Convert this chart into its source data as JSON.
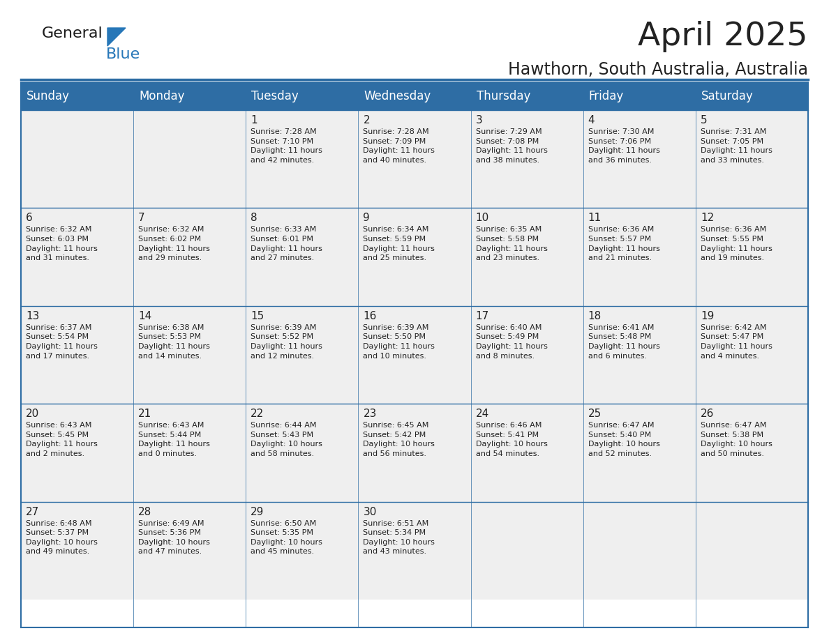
{
  "title": "April 2025",
  "subtitle": "Hawthorn, South Australia, Australia",
  "header_bg": "#2E6DA4",
  "header_text_color": "#FFFFFF",
  "cell_bg_light": "#EFEFEF",
  "text_color": "#222222",
  "border_color": "#2E6DA4",
  "day_headers": [
    "Sunday",
    "Monday",
    "Tuesday",
    "Wednesday",
    "Thursday",
    "Friday",
    "Saturday"
  ],
  "calendar_data": [
    [
      "",
      "",
      "1\nSunrise: 7:28 AM\nSunset: 7:10 PM\nDaylight: 11 hours\nand 42 minutes.",
      "2\nSunrise: 7:28 AM\nSunset: 7:09 PM\nDaylight: 11 hours\nand 40 minutes.",
      "3\nSunrise: 7:29 AM\nSunset: 7:08 PM\nDaylight: 11 hours\nand 38 minutes.",
      "4\nSunrise: 7:30 AM\nSunset: 7:06 PM\nDaylight: 11 hours\nand 36 minutes.",
      "5\nSunrise: 7:31 AM\nSunset: 7:05 PM\nDaylight: 11 hours\nand 33 minutes."
    ],
    [
      "6\nSunrise: 6:32 AM\nSunset: 6:03 PM\nDaylight: 11 hours\nand 31 minutes.",
      "7\nSunrise: 6:32 AM\nSunset: 6:02 PM\nDaylight: 11 hours\nand 29 minutes.",
      "8\nSunrise: 6:33 AM\nSunset: 6:01 PM\nDaylight: 11 hours\nand 27 minutes.",
      "9\nSunrise: 6:34 AM\nSunset: 5:59 PM\nDaylight: 11 hours\nand 25 minutes.",
      "10\nSunrise: 6:35 AM\nSunset: 5:58 PM\nDaylight: 11 hours\nand 23 minutes.",
      "11\nSunrise: 6:36 AM\nSunset: 5:57 PM\nDaylight: 11 hours\nand 21 minutes.",
      "12\nSunrise: 6:36 AM\nSunset: 5:55 PM\nDaylight: 11 hours\nand 19 minutes."
    ],
    [
      "13\nSunrise: 6:37 AM\nSunset: 5:54 PM\nDaylight: 11 hours\nand 17 minutes.",
      "14\nSunrise: 6:38 AM\nSunset: 5:53 PM\nDaylight: 11 hours\nand 14 minutes.",
      "15\nSunrise: 6:39 AM\nSunset: 5:52 PM\nDaylight: 11 hours\nand 12 minutes.",
      "16\nSunrise: 6:39 AM\nSunset: 5:50 PM\nDaylight: 11 hours\nand 10 minutes.",
      "17\nSunrise: 6:40 AM\nSunset: 5:49 PM\nDaylight: 11 hours\nand 8 minutes.",
      "18\nSunrise: 6:41 AM\nSunset: 5:48 PM\nDaylight: 11 hours\nand 6 minutes.",
      "19\nSunrise: 6:42 AM\nSunset: 5:47 PM\nDaylight: 11 hours\nand 4 minutes."
    ],
    [
      "20\nSunrise: 6:43 AM\nSunset: 5:45 PM\nDaylight: 11 hours\nand 2 minutes.",
      "21\nSunrise: 6:43 AM\nSunset: 5:44 PM\nDaylight: 11 hours\nand 0 minutes.",
      "22\nSunrise: 6:44 AM\nSunset: 5:43 PM\nDaylight: 10 hours\nand 58 minutes.",
      "23\nSunrise: 6:45 AM\nSunset: 5:42 PM\nDaylight: 10 hours\nand 56 minutes.",
      "24\nSunrise: 6:46 AM\nSunset: 5:41 PM\nDaylight: 10 hours\nand 54 minutes.",
      "25\nSunrise: 6:47 AM\nSunset: 5:40 PM\nDaylight: 10 hours\nand 52 minutes.",
      "26\nSunrise: 6:47 AM\nSunset: 5:38 PM\nDaylight: 10 hours\nand 50 minutes."
    ],
    [
      "27\nSunrise: 6:48 AM\nSunset: 5:37 PM\nDaylight: 10 hours\nand 49 minutes.",
      "28\nSunrise: 6:49 AM\nSunset: 5:36 PM\nDaylight: 10 hours\nand 47 minutes.",
      "29\nSunrise: 6:50 AM\nSunset: 5:35 PM\nDaylight: 10 hours\nand 45 minutes.",
      "30\nSunrise: 6:51 AM\nSunset: 5:34 PM\nDaylight: 10 hours\nand 43 minutes.",
      "",
      "",
      ""
    ]
  ],
  "logo_color_general": "#1a1a1a",
  "logo_color_blue": "#2777B8",
  "title_fontsize": 34,
  "subtitle_fontsize": 17,
  "header_fontsize": 12,
  "day_num_fontsize": 11,
  "cell_text_fontsize": 8.0
}
